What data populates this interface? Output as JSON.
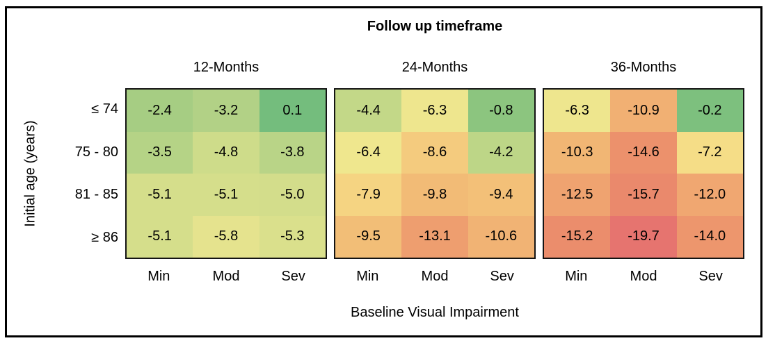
{
  "figure": {
    "background_color": "#ffffff",
    "outer_border_color": "#000000",
    "panel_border_color": "#141414",
    "text_color": "#000000"
  },
  "chart_data": {
    "type": "heatmap",
    "title": "Follow up timeframe",
    "xlabel": "Baseline Visual Impairment",
    "ylabel": "Initial age (years)",
    "legend": "none",
    "grid": false,
    "row_labels": [
      "≤ 74",
      "75 - 80",
      "81 - 85",
      "≥ 86"
    ],
    "col_labels": [
      "Min",
      "Mod",
      "Sev"
    ],
    "panels": [
      {
        "label": "12-Months",
        "values": [
          [
            -2.4,
            -3.2,
            0.1
          ],
          [
            -3.5,
            -4.8,
            -3.8
          ],
          [
            -5.1,
            -5.1,
            -5.0
          ],
          [
            -5.1,
            -5.8,
            -5.3
          ]
        ]
      },
      {
        "label": "24-Months",
        "values": [
          [
            -4.4,
            -6.3,
            -0.8
          ],
          [
            -6.4,
            -8.6,
            -4.2
          ],
          [
            -7.9,
            -9.8,
            -9.4
          ],
          [
            -9.5,
            -13.1,
            -10.6
          ]
        ]
      },
      {
        "label": "36-Months",
        "values": [
          [
            -6.3,
            -10.9,
            -0.2
          ],
          [
            -10.3,
            -14.6,
            -7.2
          ],
          [
            -12.5,
            -15.7,
            -12.0
          ],
          [
            -15.2,
            -19.7,
            -14.0
          ]
        ]
      }
    ],
    "value_range": [
      -19.7,
      0.1
    ],
    "value_format_decimals": 1,
    "color_scale_anchors": [
      [
        -22.0,
        "#e36c6d"
      ],
      [
        -19.7,
        "#e6746f"
      ],
      [
        -18.0,
        "#e87d6e"
      ],
      [
        -16.0,
        "#ea876c"
      ],
      [
        -14.7,
        "#ec906c"
      ],
      [
        -13.4,
        "#ee9c6e"
      ],
      [
        -12.4,
        "#efa470"
      ],
      [
        -10.8,
        "#f1b173"
      ],
      [
        -9.6,
        "#f2bd76"
      ],
      [
        -8.8,
        "#f4c87d"
      ],
      [
        -8.0,
        "#f5d381"
      ],
      [
        -7.3,
        "#f5dc86"
      ],
      [
        -6.5,
        "#f1e78e"
      ],
      [
        -5.9,
        "#e7e48e"
      ],
      [
        -5.2,
        "#d8df8c"
      ],
      [
        -4.7,
        "#cbdb89"
      ],
      [
        -4.2,
        "#bdd687"
      ],
      [
        -3.3,
        "#b3d286"
      ],
      [
        -2.4,
        "#a6cd83"
      ],
      [
        -1.2,
        "#93c880"
      ],
      [
        -0.5,
        "#86c37f"
      ],
      [
        0.1,
        "#74bd7d"
      ],
      [
        0.5,
        "#6fbc79"
      ]
    ]
  }
}
